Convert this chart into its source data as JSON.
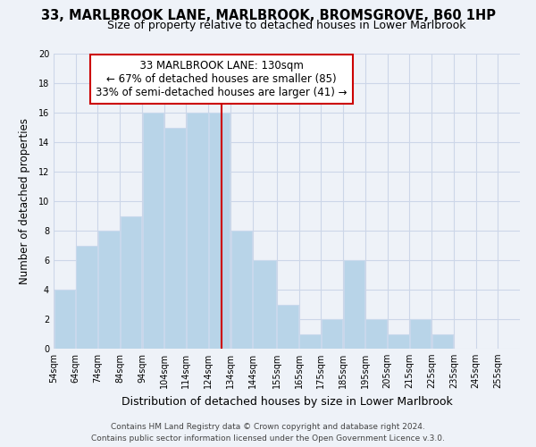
{
  "title1": "33, MARLBROOK LANE, MARLBROOK, BROMSGROVE, B60 1HP",
  "title2": "Size of property relative to detached houses in Lower Marlbrook",
  "xlabel": "Distribution of detached houses by size in Lower Marlbrook",
  "ylabel": "Number of detached properties",
  "bin_labels": [
    "54sqm",
    "64sqm",
    "74sqm",
    "84sqm",
    "94sqm",
    "104sqm",
    "114sqm",
    "124sqm",
    "134sqm",
    "144sqm",
    "155sqm",
    "165sqm",
    "175sqm",
    "185sqm",
    "195sqm",
    "205sqm",
    "215sqm",
    "225sqm",
    "235sqm",
    "245sqm",
    "255sqm"
  ],
  "bar_heights": [
    4,
    7,
    8,
    9,
    16,
    15,
    16,
    16,
    8,
    6,
    3,
    1,
    2,
    6,
    2,
    1,
    2,
    1,
    0,
    0
  ],
  "bar_left_edges": [
    54,
    64,
    74,
    84,
    94,
    104,
    114,
    124,
    134,
    144,
    155,
    165,
    175,
    185,
    195,
    205,
    215,
    225,
    235,
    245
  ],
  "bar_widths": [
    10,
    10,
    10,
    10,
    10,
    10,
    10,
    10,
    10,
    11,
    10,
    10,
    10,
    10,
    10,
    10,
    10,
    10,
    10,
    10
  ],
  "bar_color": "#b8d4e8",
  "bar_edgecolor": "#c8d8ec",
  "vline_x": 130,
  "vline_color": "#cc0000",
  "annotation_title": "33 MARLBROOK LANE: 130sqm",
  "annotation_line1": "← 67% of detached houses are smaller (85)",
  "annotation_line2": "33% of semi-detached houses are larger (41) →",
  "annotation_box_edgecolor": "#cc0000",
  "annotation_box_facecolor": "#ffffff",
  "ylim": [
    0,
    20
  ],
  "xlim": [
    54,
    265
  ],
  "yticks": [
    0,
    2,
    4,
    6,
    8,
    10,
    12,
    14,
    16,
    18,
    20
  ],
  "xtick_positions": [
    54,
    64,
    74,
    84,
    94,
    104,
    114,
    124,
    134,
    144,
    155,
    165,
    175,
    185,
    195,
    205,
    215,
    225,
    235,
    245,
    255
  ],
  "footer1": "Contains HM Land Registry data © Crown copyright and database right 2024.",
  "footer2": "Contains public sector information licensed under the Open Government Licence v.3.0.",
  "title1_fontsize": 10.5,
  "title2_fontsize": 9,
  "xlabel_fontsize": 9,
  "ylabel_fontsize": 8.5,
  "tick_fontsize": 7,
  "annotation_fontsize": 8.5,
  "footer_fontsize": 6.5,
  "grid_color": "#ccd6e8",
  "background_color": "#eef2f8"
}
